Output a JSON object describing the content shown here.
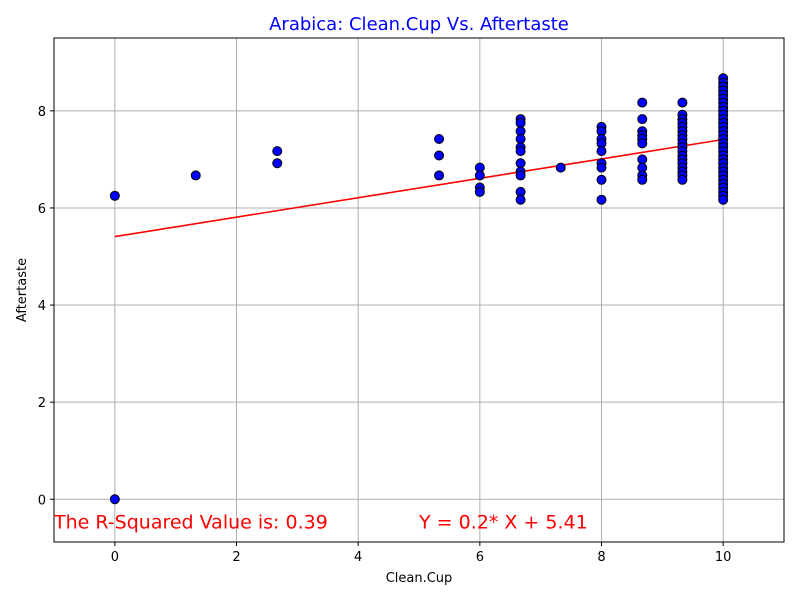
{
  "chart_data": {
    "type": "scatter",
    "title": "Arabica: Clean.Cup Vs. Aftertaste",
    "title_color": "#0000ff",
    "xlabel": "Clean.Cup",
    "ylabel": "Aftertaste",
    "xlim": [
      -1,
      11
    ],
    "ylim": [
      -0.88,
      9.5
    ],
    "xticks": [
      0,
      2,
      4,
      6,
      8,
      10
    ],
    "yticks": [
      0,
      2,
      4,
      6,
      8
    ],
    "grid": true,
    "point_color": "#0000ff",
    "point_edge_color": "#000000",
    "points": [
      [
        0,
        0
      ],
      [
        0,
        6.25
      ],
      [
        1.33,
        6.67
      ],
      [
        2.67,
        7.17
      ],
      [
        2.67,
        6.92
      ],
      [
        5.33,
        7.42
      ],
      [
        5.33,
        7.08
      ],
      [
        5.33,
        6.67
      ],
      [
        6,
        6.83
      ],
      [
        6,
        6.67
      ],
      [
        6,
        6.42
      ],
      [
        6,
        6.33
      ],
      [
        6.67,
        7.83
      ],
      [
        6.67,
        7.75
      ],
      [
        6.67,
        7.58
      ],
      [
        6.67,
        7.42
      ],
      [
        6.67,
        7.25
      ],
      [
        6.67,
        7.17
      ],
      [
        6.67,
        6.92
      ],
      [
        6.67,
        6.75
      ],
      [
        6.67,
        6.67
      ],
      [
        6.67,
        6.33
      ],
      [
        6.67,
        6.17
      ],
      [
        7.33,
        6.83
      ],
      [
        8,
        7.67
      ],
      [
        8,
        7.58
      ],
      [
        8,
        7.42
      ],
      [
        8,
        7.33
      ],
      [
        8,
        7.17
      ],
      [
        8,
        6.92
      ],
      [
        8,
        6.83
      ],
      [
        8,
        6.58
      ],
      [
        8,
        6.17
      ],
      [
        8.67,
        8.17
      ],
      [
        8.67,
        7.83
      ],
      [
        8.67,
        7.58
      ],
      [
        8.67,
        7.5
      ],
      [
        8.67,
        7.42
      ],
      [
        8.67,
        7.33
      ],
      [
        8.67,
        7.0
      ],
      [
        8.67,
        6.83
      ],
      [
        8.67,
        6.67
      ],
      [
        8.67,
        6.58
      ],
      [
        9.33,
        8.17
      ],
      [
        9.33,
        7.92
      ],
      [
        9.33,
        7.83
      ],
      [
        9.33,
        7.75
      ],
      [
        9.33,
        7.67
      ],
      [
        9.33,
        7.58
      ],
      [
        9.33,
        7.5
      ],
      [
        9.33,
        7.42
      ],
      [
        9.33,
        7.33
      ],
      [
        9.33,
        7.25
      ],
      [
        9.33,
        7.17
      ],
      [
        9.33,
        7.08
      ],
      [
        9.33,
        7.0
      ],
      [
        9.33,
        6.92
      ],
      [
        9.33,
        6.83
      ],
      [
        9.33,
        6.75
      ],
      [
        9.33,
        6.67
      ],
      [
        9.33,
        6.58
      ],
      [
        10,
        8.67
      ],
      [
        10,
        8.58
      ],
      [
        10,
        8.5
      ],
      [
        10,
        8.42
      ],
      [
        10,
        8.33
      ],
      [
        10,
        8.25
      ],
      [
        10,
        8.17
      ],
      [
        10,
        8.08
      ],
      [
        10,
        8.0
      ],
      [
        10,
        7.92
      ],
      [
        10,
        7.83
      ],
      [
        10,
        7.75
      ],
      [
        10,
        7.67
      ],
      [
        10,
        7.58
      ],
      [
        10,
        7.5
      ],
      [
        10,
        7.42
      ],
      [
        10,
        7.33
      ],
      [
        10,
        7.25
      ],
      [
        10,
        7.17
      ],
      [
        10,
        7.08
      ],
      [
        10,
        7.0
      ],
      [
        10,
        6.92
      ],
      [
        10,
        6.83
      ],
      [
        10,
        6.75
      ],
      [
        10,
        6.67
      ],
      [
        10,
        6.58
      ],
      [
        10,
        6.5
      ],
      [
        10,
        6.42
      ],
      [
        10,
        6.33
      ],
      [
        10,
        6.25
      ],
      [
        10,
        6.17
      ]
    ],
    "regression": {
      "slope": 0.2,
      "intercept": 5.41,
      "x_range": [
        0,
        10
      ],
      "color": "#ff0000"
    },
    "annotations": [
      {
        "text": "The R-Squared Value is: 0.39",
        "x": -1,
        "y": -0.6,
        "color": "#ff0000"
      },
      {
        "text": "Y = 0.2* X + 5.41",
        "x": 5,
        "y": -0.6,
        "color": "#ff0000"
      }
    ]
  }
}
